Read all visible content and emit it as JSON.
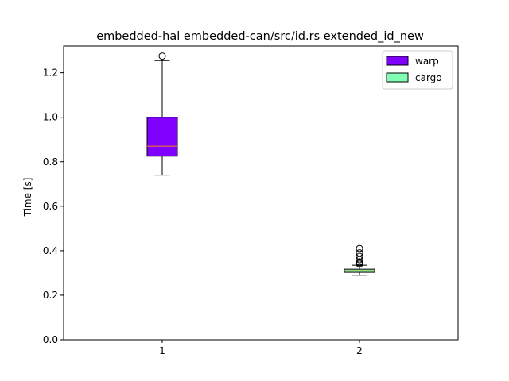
{
  "chart_data": {
    "type": "box",
    "title": "embedded-hal embedded-can/src/id.rs extended_id_new",
    "xlabel": "",
    "ylabel": "Time [s]",
    "categories": [
      "1",
      "2"
    ],
    "ylim": [
      0.0,
      1.32
    ],
    "yticks": [
      "0.0",
      "0.2",
      "0.4",
      "0.6",
      "0.8",
      "1.0",
      "1.2"
    ],
    "grid": false,
    "legend_position": "top-right",
    "series": [
      {
        "name": "warp",
        "color": "#7f00ff",
        "position": 1,
        "whisker_low": 0.74,
        "q1": 0.825,
        "median": 0.87,
        "q3": 1.0,
        "whisker_high": 1.255,
        "outliers": [
          1.275
        ]
      },
      {
        "name": "cargo",
        "color": "#80ffb4",
        "position": 2,
        "whisker_low": 0.29,
        "q1": 0.303,
        "median": 0.31,
        "q3": 0.317,
        "whisker_high": 0.335,
        "outliers": [
          0.34,
          0.345,
          0.35,
          0.36,
          0.375,
          0.39,
          0.41
        ]
      }
    ],
    "median_color": "#ff7f0e"
  }
}
